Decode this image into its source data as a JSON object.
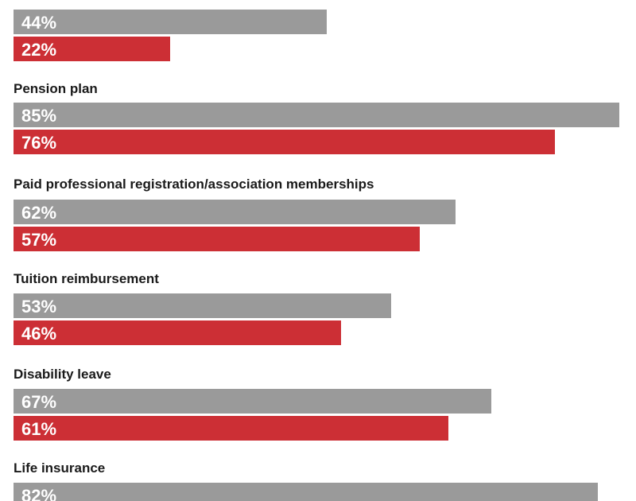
{
  "chart_data": {
    "type": "bar",
    "orientation": "horizontal",
    "xlim": [
      0,
      100
    ],
    "colors": {
      "series_1": "#9a9a9a",
      "series_2": "#cc2f35",
      "label": "#ffffff",
      "text": "#1a1a1a"
    },
    "groups": [
      {
        "category": "",
        "values": [
          44,
          22
        ],
        "labels": [
          "44%",
          "22%"
        ]
      },
      {
        "category": "Pension plan",
        "values": [
          85,
          76
        ],
        "labels": [
          "85%",
          "76%"
        ]
      },
      {
        "category": "Paid professional registration/association memberships",
        "values": [
          62,
          57
        ],
        "labels": [
          "62%",
          "57%"
        ]
      },
      {
        "category": "Tuition reimbursement",
        "values": [
          53,
          46
        ],
        "labels": [
          "53%",
          "46%"
        ]
      },
      {
        "category": "Disability leave",
        "values": [
          67,
          61
        ],
        "labels": [
          "67%",
          "61%"
        ]
      },
      {
        "category": "Life insurance",
        "values": [
          82
        ],
        "labels": [
          "82%"
        ]
      }
    ]
  }
}
